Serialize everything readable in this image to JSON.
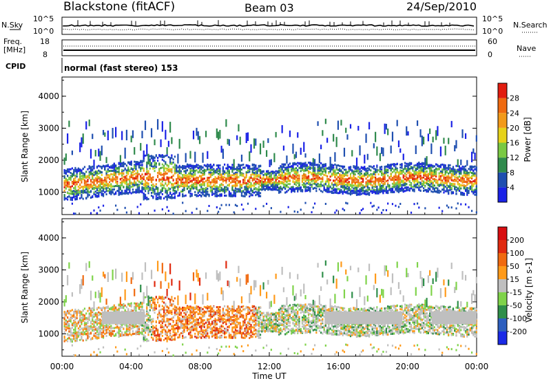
{
  "header": {
    "station": "Blackstone (fitACF)",
    "beam": "Beam 03",
    "date": "24/Sep/2010"
  },
  "aux_panel": {
    "nsky_label": "N.Sky",
    "nsky_ticks": [
      "10^5",
      "10^0"
    ],
    "nsearch_label": "N.Search",
    "nsearch_ticks": [
      "10^5",
      "10^0"
    ],
    "freq_label_1": "Freq.",
    "freq_label_2": "[MHz]",
    "freq_ticks": [
      "18",
      "8"
    ],
    "nave_label": "Nave",
    "nave_ticks": [
      "60",
      "0"
    ],
    "cpid_label": "CPID",
    "cpid_value": "normal (fast stereo) 153"
  },
  "colors": {
    "power_scale": [
      "#1a22e6",
      "#1f4fb0",
      "#2f8a4c",
      "#7ac943",
      "#e6d21a",
      "#f29a1a",
      "#ef6a10",
      "#e21d10"
    ],
    "velocity_scale": [
      "#1a2ae6",
      "#2d5fbf",
      "#2f8f4a",
      "#7fd34a",
      "#bfbfbf",
      "#ff9a1a",
      "#f06a10",
      "#e02a10",
      "#d80d10"
    ]
  },
  "chart_data": [
    {
      "type": "heatmap",
      "panel": "power",
      "ylabel": "Slant Range [km]",
      "yticks": [
        "1000",
        "2000",
        "3000",
        "4000"
      ],
      "ylim": [
        300,
        4600
      ],
      "xlim": [
        "00:00",
        "24:00"
      ],
      "colorbar_label": "Power [dB]",
      "colorbar_ticks": [
        "4",
        "8",
        "12",
        "16",
        "20",
        "24",
        "28"
      ]
    },
    {
      "type": "heatmap",
      "panel": "velocity",
      "ylabel": "Slant Range [km]",
      "yticks": [
        "1000",
        "2000",
        "3000",
        "4000"
      ],
      "ylim": [
        300,
        4600
      ],
      "xlim": [
        "00:00",
        "24:00"
      ],
      "xticks": [
        "00:00",
        "04:00",
        "08:00",
        "12:00",
        "16:00",
        "20:00",
        "00:00"
      ],
      "xlabel": "Time UT",
      "colorbar_label": "Velocity [m s-1]",
      "colorbar_ticks": [
        "200",
        "100",
        "50",
        "15",
        "-15",
        "-50",
        "-100",
        "-200"
      ]
    }
  ]
}
